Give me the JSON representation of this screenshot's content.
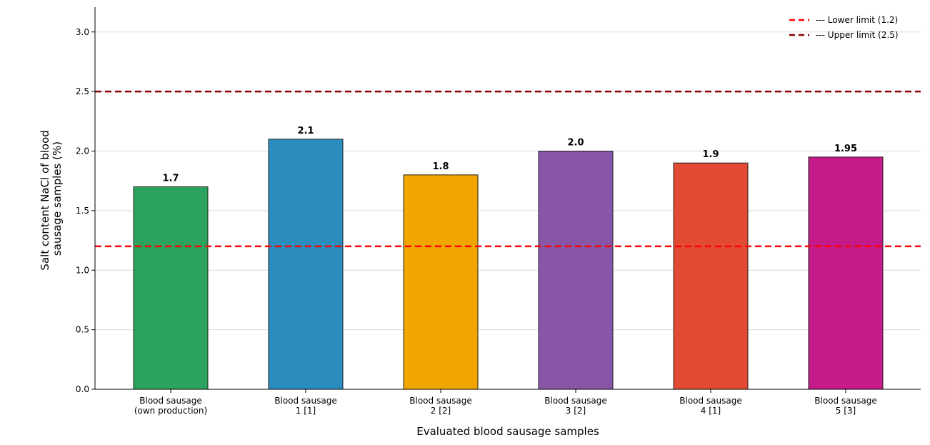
{
  "chart_data": {
    "type": "bar",
    "xlabel": "Evaluated blood sausage samples",
    "ylabel": "Salt content NaCl of blood sausage samples (%)",
    "ylabel_lines": [
      "Salt content NaCl of blood",
      "sausage samples (%)"
    ],
    "ylim": [
      0,
      3.2
    ],
    "yticks": [
      "0.0",
      "0.5",
      "1.0",
      "1.5",
      "2.0",
      "2.5",
      "3.0"
    ],
    "grid": "horizontal",
    "legend_position": "top-right",
    "categories": [
      [
        "Blood sausage",
        "(own production)"
      ],
      [
        "Blood sausage",
        "1 [1]"
      ],
      [
        "Blood sausage",
        "2 [2]"
      ],
      [
        "Blood sausage",
        "3 [2]"
      ],
      [
        "Blood sausage",
        "4 [1]"
      ],
      [
        "Blood sausage",
        "5 [3]"
      ]
    ],
    "values": [
      1.7,
      2.1,
      1.8,
      2.0,
      1.9,
      1.95
    ],
    "value_labels": [
      "1.7",
      "2.1",
      "1.8",
      "2.0",
      "1.9",
      "1.95"
    ],
    "colors": [
      "#2ca25f",
      "#2b8cbe",
      "#f0a500",
      "#8856a7",
      "#e34a33",
      "#c51b8a"
    ],
    "reference_lines": [
      {
        "label": "--- Lower limit (1.2)",
        "value": 1.2,
        "color": "#ff0000"
      },
      {
        "label": "--- Upper limit (2.5)",
        "value": 2.5,
        "color": "#8b0000"
      }
    ]
  }
}
